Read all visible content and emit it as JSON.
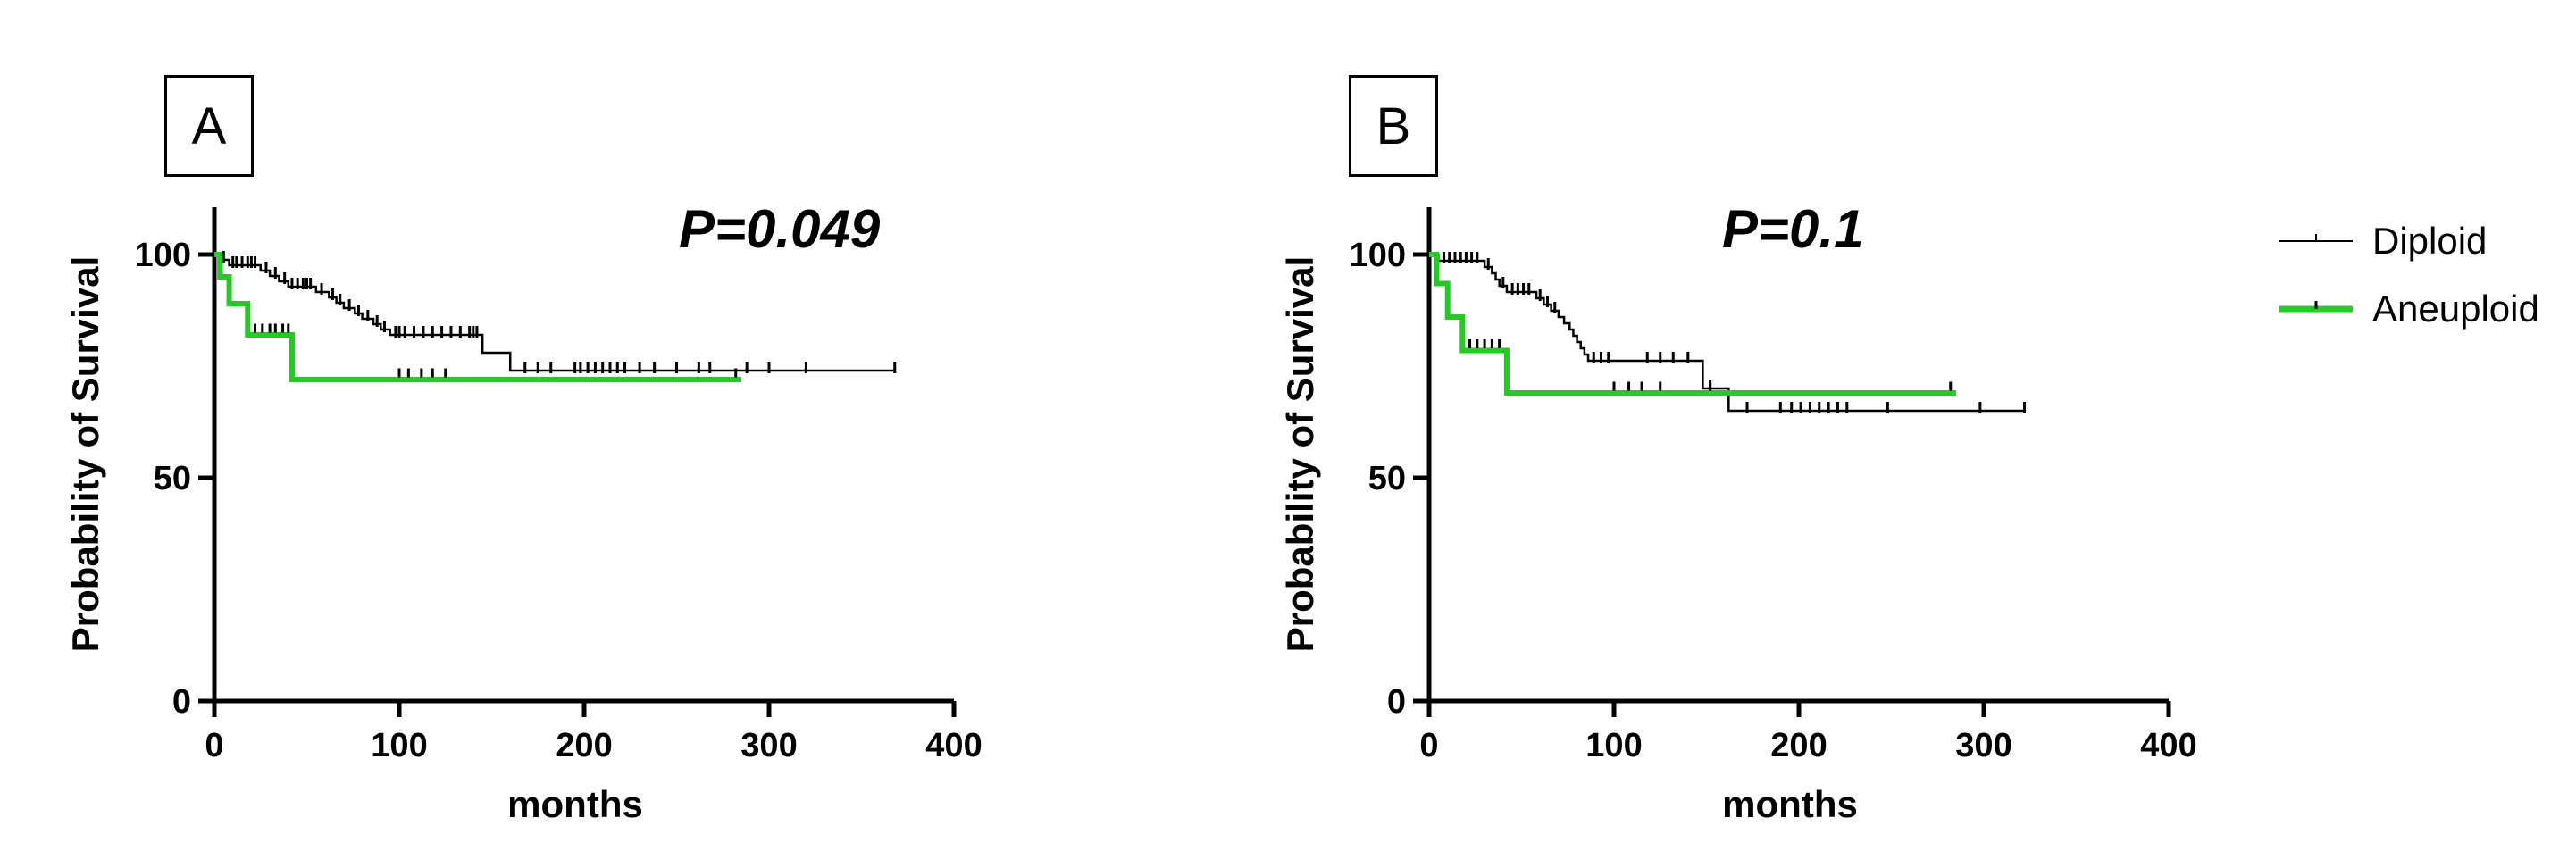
{
  "panels": [
    {
      "label": "A",
      "pvalue": "P=0.049"
    },
    {
      "label": "B",
      "pvalue": "P=0.1"
    }
  ],
  "legend": [
    {
      "name": "Diploid",
      "color": "#000000"
    },
    {
      "name": "Aneuploid",
      "color": "#22cc22"
    }
  ],
  "chart_data": [
    {
      "type": "line",
      "panel": "A",
      "annotation": "P=0.049",
      "xlabel": "months",
      "ylabel": "Probability of Survival",
      "xlim": [
        0,
        400
      ],
      "ylim": [
        0,
        100
      ],
      "xticks": [
        0,
        100,
        200,
        300,
        400
      ],
      "yticks": [
        0,
        50,
        100
      ],
      "grid": false,
      "legend_position": "right",
      "series": [
        {
          "name": "Diploid",
          "color": "#000000",
          "step": [
            [
              0,
              100
            ],
            [
              3,
              98.8
            ],
            [
              8,
              97.6
            ],
            [
              25,
              96.4
            ],
            [
              30,
              95.2
            ],
            [
              35,
              94.0
            ],
            [
              40,
              92.8
            ],
            [
              55,
              91.6
            ],
            [
              62,
              90.4
            ],
            [
              66,
              89.2
            ],
            [
              70,
              88.0
            ],
            [
              76,
              86.8
            ],
            [
              80,
              85.6
            ],
            [
              86,
              84.4
            ],
            [
              90,
              83.2
            ],
            [
              95,
              82.0
            ],
            [
              145,
              78.0
            ],
            [
              160,
              74.0
            ],
            [
              368,
              74.0
            ]
          ],
          "censored": [
            [
              5,
              98.8
            ],
            [
              10,
              97.6
            ],
            [
              12,
              97.6
            ],
            [
              15,
              97.6
            ],
            [
              18,
              97.6
            ],
            [
              20,
              97.6
            ],
            [
              22,
              97.6
            ],
            [
              28,
              96.4
            ],
            [
              33,
              95.2
            ],
            [
              38,
              94.0
            ],
            [
              42,
              92.8
            ],
            [
              45,
              92.8
            ],
            [
              48,
              92.8
            ],
            [
              50,
              92.8
            ],
            [
              52,
              92.8
            ],
            [
              58,
              91.6
            ],
            [
              64,
              90.4
            ],
            [
              68,
              89.2
            ],
            [
              73,
              88.0
            ],
            [
              78,
              86.8
            ],
            [
              83,
              85.6
            ],
            [
              88,
              84.4
            ],
            [
              92,
              83.2
            ],
            [
              98,
              82.0
            ],
            [
              100,
              82.0
            ],
            [
              103,
              82.0
            ],
            [
              108,
              82.0
            ],
            [
              113,
              82.0
            ],
            [
              118,
              82.0
            ],
            [
              123,
              82.0
            ],
            [
              128,
              82.0
            ],
            [
              133,
              82.0
            ],
            [
              138,
              82.0
            ],
            [
              140,
              82.0
            ],
            [
              142,
              82.0
            ],
            [
              168,
              74.0
            ],
            [
              175,
              74.0
            ],
            [
              182,
              74.0
            ],
            [
              195,
              74.0
            ],
            [
              198,
              74.0
            ],
            [
              202,
              74.0
            ],
            [
              206,
              74.0
            ],
            [
              210,
              74.0
            ],
            [
              214,
              74.0
            ],
            [
              218,
              74.0
            ],
            [
              222,
              74.0
            ],
            [
              230,
              74.0
            ],
            [
              238,
              74.0
            ],
            [
              250,
              74.0
            ],
            [
              262,
              74.0
            ],
            [
              268,
              74.0
            ],
            [
              288,
              74.0
            ],
            [
              300,
              74.0
            ],
            [
              320,
              74.0
            ],
            [
              368,
              74.0
            ]
          ]
        },
        {
          "name": "Aneuploid",
          "color": "#22cc22",
          "step": [
            [
              0,
              100
            ],
            [
              3,
              95
            ],
            [
              8,
              89
            ],
            [
              18,
              82
            ],
            [
              42,
              72
            ],
            [
              285,
              72
            ]
          ],
          "censored": [
            [
              22,
              82.5
            ],
            [
              26,
              82.5
            ],
            [
              30,
              82.5
            ],
            [
              33,
              82.5
            ],
            [
              37,
              82.5
            ],
            [
              40,
              82.5
            ],
            [
              100,
              72.5
            ],
            [
              105,
              72.5
            ],
            [
              112,
              72.5
            ],
            [
              118,
              72.5
            ],
            [
              125,
              72.5
            ],
            [
              282,
              72.5
            ]
          ]
        }
      ]
    },
    {
      "type": "line",
      "panel": "B",
      "annotation": "P=0.1",
      "xlabel": "months",
      "ylabel": "Probability of Survival",
      "xlim": [
        0,
        400
      ],
      "ylim": [
        0,
        100
      ],
      "xticks": [
        0,
        100,
        200,
        300,
        400
      ],
      "yticks": [
        0,
        50,
        100
      ],
      "grid": false,
      "legend_position": "right",
      "series": [
        {
          "name": "Diploid",
          "color": "#000000",
          "step": [
            [
              0,
              100
            ],
            [
              5,
              98.6
            ],
            [
              30,
              97.2
            ],
            [
              34,
              95.8
            ],
            [
              36,
              94.4
            ],
            [
              38,
              93.0
            ],
            [
              42,
              91.6
            ],
            [
              58,
              90.2
            ],
            [
              62,
              88.8
            ],
            [
              66,
              87.4
            ],
            [
              70,
              86.0
            ],
            [
              73,
              84.6
            ],
            [
              76,
              83.2
            ],
            [
              78,
              81.8
            ],
            [
              80,
              80.4
            ],
            [
              82,
              79.0
            ],
            [
              84,
              77.6
            ],
            [
              86,
              76.2
            ],
            [
              148,
              70.0
            ],
            [
              162,
              65.0
            ],
            [
              322,
              65.0
            ]
          ],
          "censored": [
            [
              8,
              98.6
            ],
            [
              11,
              98.6
            ],
            [
              14,
              98.6
            ],
            [
              17,
              98.6
            ],
            [
              20,
              98.6
            ],
            [
              23,
              98.6
            ],
            [
              26,
              98.6
            ],
            [
              32,
              97.2
            ],
            [
              40,
              93.0
            ],
            [
              45,
              91.6
            ],
            [
              48,
              91.6
            ],
            [
              51,
              91.6
            ],
            [
              54,
              91.6
            ],
            [
              60,
              90.2
            ],
            [
              64,
              88.8
            ],
            [
              68,
              87.4
            ],
            [
              89,
              76.2
            ],
            [
              93,
              76.2
            ],
            [
              97,
              76.2
            ],
            [
              118,
              76.2
            ],
            [
              125,
              76.2
            ],
            [
              132,
              76.2
            ],
            [
              140,
              76.2
            ],
            [
              152,
              70.0
            ],
            [
              172,
              65.0
            ],
            [
              190,
              65.0
            ],
            [
              196,
              65.0
            ],
            [
              201,
              65.0
            ],
            [
              206,
              65.0
            ],
            [
              211,
              65.0
            ],
            [
              216,
              65.0
            ],
            [
              221,
              65.0
            ],
            [
              226,
              65.0
            ],
            [
              248,
              65.0
            ],
            [
              298,
              65.0
            ],
            [
              322,
              65.0
            ]
          ]
        },
        {
          "name": "Aneuploid",
          "color": "#22cc22",
          "step": [
            [
              0,
              100
            ],
            [
              4,
              93.5
            ],
            [
              10,
              86
            ],
            [
              18,
              78.5
            ],
            [
              42,
              69
            ],
            [
              285,
              69
            ]
          ],
          "censored": [
            [
              22,
              79
            ],
            [
              26,
              79
            ],
            [
              30,
              79
            ],
            [
              34,
              79
            ],
            [
              38,
              79
            ],
            [
              100,
              69.5
            ],
            [
              108,
              69.5
            ],
            [
              115,
              69.5
            ],
            [
              125,
              69.5
            ],
            [
              152,
              69.5
            ],
            [
              282,
              69.5
            ]
          ]
        }
      ]
    }
  ]
}
